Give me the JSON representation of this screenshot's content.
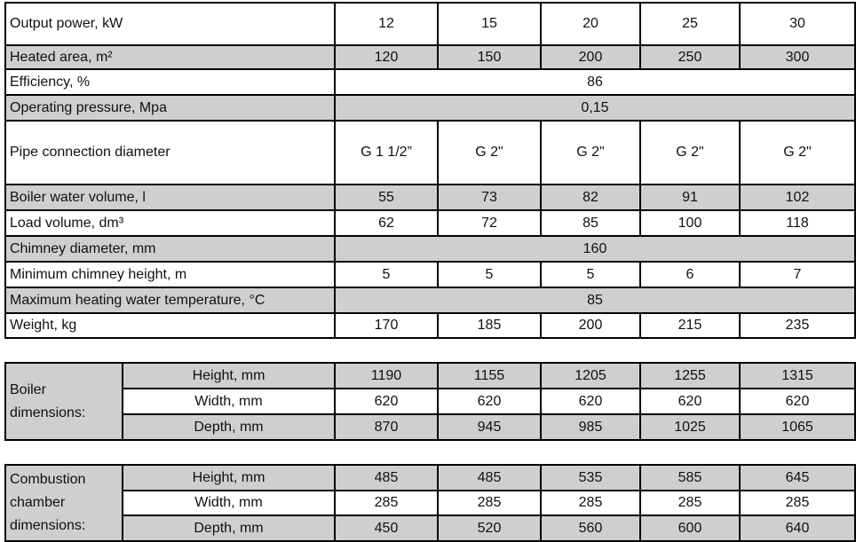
{
  "specs": [
    {
      "label": "Output power, kW",
      "values": [
        "12",
        "15",
        "20",
        "25",
        "30"
      ],
      "shaded": false
    },
    {
      "label": "Heated area, m²",
      "values": [
        "120",
        "150",
        "200",
        "250",
        "300"
      ],
      "shaded": true
    },
    {
      "label": "Efficiency, %",
      "merged": "86",
      "shaded": false
    },
    {
      "label": "Operating pressure, Mpa",
      "merged": "0,15",
      "shaded": true
    },
    {
      "label": "Pipe connection diameter",
      "values": [
        "G 1 1/2”",
        "G 2\"",
        "G 2\"",
        "G 2\"",
        "G 2\""
      ],
      "shaded": false
    },
    {
      "label": "Boiler water volume, l",
      "values": [
        "55",
        "73",
        "82",
        "91",
        "102"
      ],
      "shaded": true
    },
    {
      "label": "Load volume, dm³",
      "values": [
        "62",
        "72",
        "85",
        "100",
        "118"
      ],
      "shaded": false
    },
    {
      "label": "Chimney diameter, mm",
      "merged": "160",
      "shaded": true
    },
    {
      "label": "Minimum chimney height, m",
      "values": [
        "5",
        "5",
        "5",
        "6",
        "7"
      ],
      "shaded": false
    },
    {
      "label": "Maximum heating water temperature, °C",
      "merged": "85",
      "shaded": true
    },
    {
      "label": "Weight, kg",
      "values": [
        "170",
        "185",
        "200",
        "215",
        "235"
      ],
      "shaded": false
    }
  ],
  "boiler": {
    "label": "Boiler dimensions:",
    "rows": [
      {
        "label": "Height, mm",
        "values": [
          "1190",
          "1155",
          "1205",
          "1255",
          "1315"
        ]
      },
      {
        "label": "Width, mm",
        "values": [
          "620",
          "620",
          "620",
          "620",
          "620"
        ]
      },
      {
        "label": "Depth, mm",
        "values": [
          "870",
          "945",
          "985",
          "1025",
          "1065"
        ]
      }
    ]
  },
  "chamber": {
    "label": "Combustion chamber dimensions:",
    "rows": [
      {
        "label": "Height, mm",
        "values": [
          "485",
          "485",
          "535",
          "585",
          "645"
        ]
      },
      {
        "label": "Width, mm",
        "values": [
          "285",
          "285",
          "285",
          "285",
          "285"
        ]
      },
      {
        "label": "Depth, mm",
        "values": [
          "450",
          "520",
          "560",
          "600",
          "640"
        ]
      }
    ]
  },
  "colors": {
    "shade": "#d0cece",
    "border": "#000000"
  }
}
